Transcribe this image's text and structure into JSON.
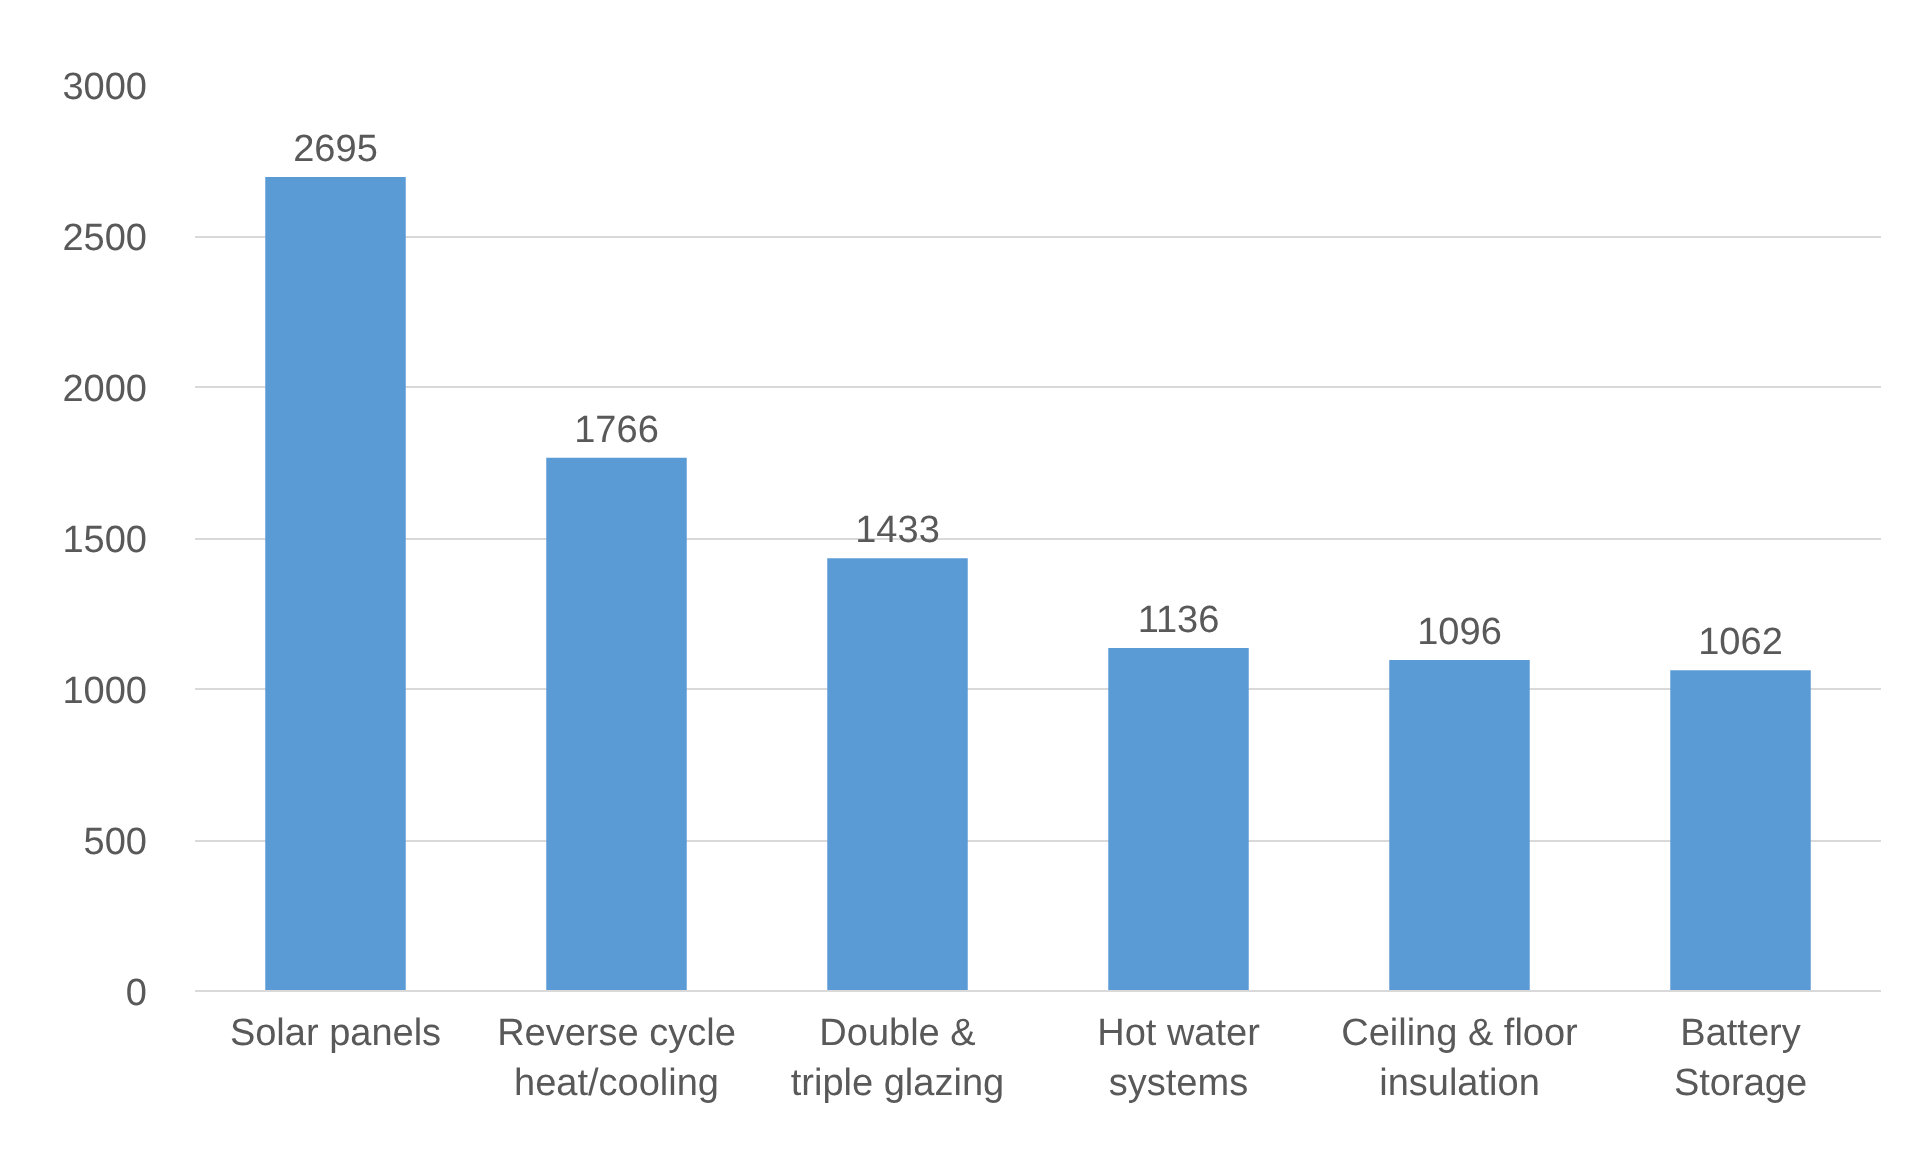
{
  "chart_data": {
    "type": "bar",
    "categories": [
      "Solar panels",
      "Reverse cycle\nheat/cooling",
      "Double &\ntriple glazing",
      "Hot water\nsystems",
      "Ceiling & floor\ninsulation",
      "Battery\nStorage"
    ],
    "values": [
      2695,
      1766,
      1433,
      1136,
      1096,
      1062
    ],
    "color": "#5b9bd5",
    "ylim": [
      0,
      3000
    ],
    "yticks": [
      0,
      500,
      1000,
      1500,
      2000,
      2500,
      3000
    ],
    "grid": "y",
    "data_labels": true
  }
}
